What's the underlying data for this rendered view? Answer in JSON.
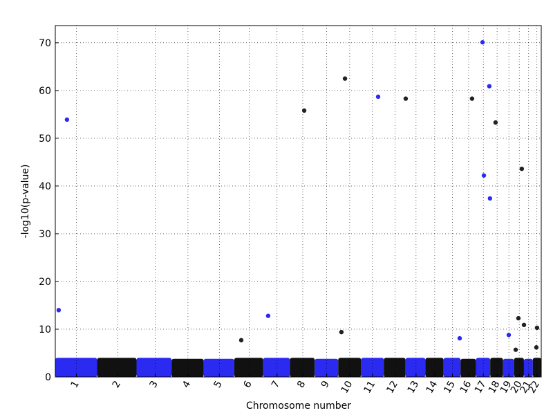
{
  "chart_data": {
    "type": "scatter",
    "xlabel": "Chromosome number",
    "ylabel": "-log10(p-value)",
    "xlim": [
      0,
      2872
    ],
    "ylim": [
      0,
      73.6
    ],
    "xticks": [
      {
        "value": 124.5,
        "label": "1"
      },
      {
        "value": 370,
        "label": "2"
      },
      {
        "value": 590,
        "label": "3"
      },
      {
        "value": 784,
        "label": "4"
      },
      {
        "value": 969.5,
        "label": "5"
      },
      {
        "value": 1145.5,
        "label": "6"
      },
      {
        "value": 1310.5,
        "label": "7"
      },
      {
        "value": 1462.5,
        "label": "8"
      },
      {
        "value": 1604,
        "label": "9"
      },
      {
        "value": 1740,
        "label": "10"
      },
      {
        "value": 1874.5,
        "label": "11"
      },
      {
        "value": 2008.5,
        "label": "12"
      },
      {
        "value": 2132,
        "label": "13"
      },
      {
        "value": 2242.5,
        "label": "14"
      },
      {
        "value": 2347,
        "label": "15"
      },
      {
        "value": 2443,
        "label": "16"
      },
      {
        "value": 2529.5,
        "label": "17"
      },
      {
        "value": 2611,
        "label": "18"
      },
      {
        "value": 2680.5,
        "label": "19"
      },
      {
        "value": 2742,
        "label": "20"
      },
      {
        "value": 2797.5,
        "label": "21"
      },
      {
        "value": 2846.5,
        "label": "22"
      }
    ],
    "yticks": [
      0,
      10,
      20,
      30,
      40,
      50,
      60,
      70
    ],
    "grid": true,
    "band_colors": [
      "#2a2af0",
      "#111111"
    ],
    "band_top": [
      4,
      4,
      4,
      3.8,
      3.8,
      4,
      4,
      4,
      3.8,
      4,
      4,
      4,
      4,
      4,
      4,
      3.8,
      4,
      4,
      3.8,
      4,
      3.8,
      4
    ],
    "x": [
      20,
      69,
      1258,
      1099,
      1471,
      1712,
      1908,
      2071,
      1691,
      2390,
      2463,
      2525,
      2565,
      2602,
      2533,
      2569,
      2757,
      2680,
      2737,
      2770,
      2847,
      2721,
      2843
    ],
    "values": [
      14,
      53.9,
      12.8,
      7.7,
      55.8,
      62.5,
      58.7,
      58.3,
      9.4,
      8.1,
      58.3,
      70.1,
      60.9,
      53.3,
      42.2,
      37.4,
      43.6,
      8.8,
      12.3,
      10.9,
      10.3,
      5.7,
      6.2
    ],
    "colors": [
      "#2a2af0",
      "#2a2af0",
      "#2a2af0",
      "#222222",
      "#222222",
      "#222222",
      "#2a2af0",
      "#222222",
      "#222222",
      "#2a2af0",
      "#222222",
      "#2a2af0",
      "#2a2af0",
      "#222222",
      "#2a2af0",
      "#2a2af0",
      "#222222",
      "#2a2af0",
      "#222222",
      "#222222",
      "#222222",
      "#222222",
      "#222222"
    ]
  }
}
